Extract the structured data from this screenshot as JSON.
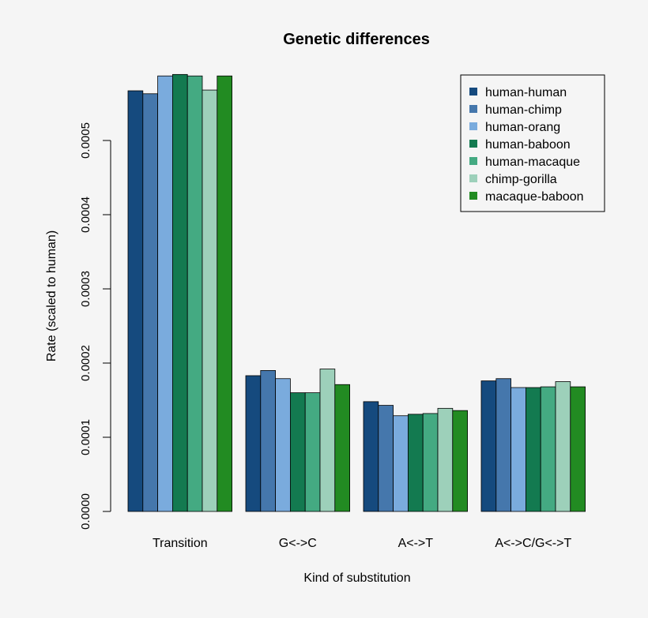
{
  "chart_data": {
    "type": "bar",
    "title": "Genetic differences",
    "xlabel": "Kind of substitution",
    "ylabel": "Rate (scaled to human)",
    "ylim": [
      0,
      0.00055
    ],
    "yticks": [
      "0.0000",
      "0.0001",
      "0.0002",
      "0.0003",
      "0.0004",
      "0.0005"
    ],
    "ytick_values": [
      0,
      0.0001,
      0.0002,
      0.0003,
      0.0004,
      0.0005
    ],
    "categories": [
      "Transition",
      "G<->C",
      "A<->T",
      "A<->C/G<->T"
    ],
    "legend_position": "top-right",
    "series": [
      {
        "name": "human-human",
        "color": "#154a7e",
        "values": [
          0.000567,
          0.000183,
          0.000148,
          0.000176
        ]
      },
      {
        "name": "human-chimp",
        "color": "#4577ac",
        "values": [
          0.000563,
          0.00019,
          0.000143,
          0.000179
        ]
      },
      {
        "name": "human-orang",
        "color": "#7aabdd",
        "values": [
          0.000587,
          0.000179,
          0.000129,
          0.000167
        ]
      },
      {
        "name": "human-baboon",
        "color": "#137a50",
        "values": [
          0.000589,
          0.00016,
          0.000131,
          0.000167
        ]
      },
      {
        "name": "human-macaque",
        "color": "#44aa82",
        "values": [
          0.000587,
          0.00016,
          0.000132,
          0.000168
        ]
      },
      {
        "name": "chimp-gorilla",
        "color": "#9dd0ba",
        "values": [
          0.000568,
          0.000192,
          0.000139,
          0.000175
        ]
      },
      {
        "name": "macaque-baboon",
        "color": "#228b22",
        "values": [
          0.000587,
          0.000171,
          0.000136,
          0.000168
        ]
      }
    ]
  }
}
